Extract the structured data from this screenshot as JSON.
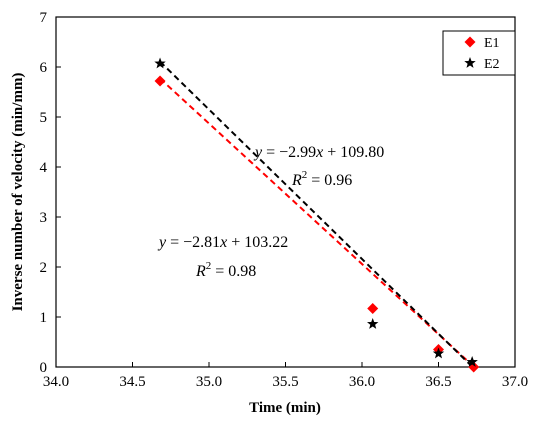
{
  "chart_data": {
    "type": "scatter",
    "title": "",
    "xlabel": "Time (min)",
    "ylabel": "Inverse number of velocity (min/mm)",
    "xlim": [
      34.0,
      37.0
    ],
    "ylim": [
      0,
      7
    ],
    "xticks": [
      "34.0",
      "34.5",
      "35.0",
      "35.5",
      "36.0",
      "36.5",
      "37.0"
    ],
    "yticks": [
      "0",
      "1",
      "2",
      "3",
      "4",
      "5",
      "6",
      "7"
    ],
    "grid": false,
    "legend_position": "top-right",
    "series": [
      {
        "name": "E1",
        "marker": "diamond",
        "color": "#ff0000",
        "points": [
          {
            "x": 34.68,
            "y": 5.72
          },
          {
            "x": 36.07,
            "y": 1.17
          },
          {
            "x": 36.5,
            "y": 0.35
          },
          {
            "x": 36.73,
            "y": 0.0
          }
        ],
        "fit": {
          "slope": -2.81,
          "intercept": 103.22,
          "x_range": [
            34.68,
            36.73
          ],
          "line_color": "#ff0000",
          "line_style": "dashed",
          "equation": "−2.81x + 103.22",
          "r2_value": "0.98"
        }
      },
      {
        "name": "E2",
        "marker": "star",
        "color": "#000000",
        "points": [
          {
            "x": 34.68,
            "y": 6.07
          },
          {
            "x": 36.07,
            "y": 0.86
          },
          {
            "x": 36.5,
            "y": 0.27
          },
          {
            "x": 36.72,
            "y": 0.1
          }
        ],
        "fit": {
          "slope": -2.99,
          "intercept": 109.8,
          "x_range": [
            34.68,
            36.73
          ],
          "line_color": "#000000",
          "line_style": "dashed",
          "equation": "−2.99x + 109.80",
          "r2_value": "0.96"
        }
      }
    ]
  }
}
